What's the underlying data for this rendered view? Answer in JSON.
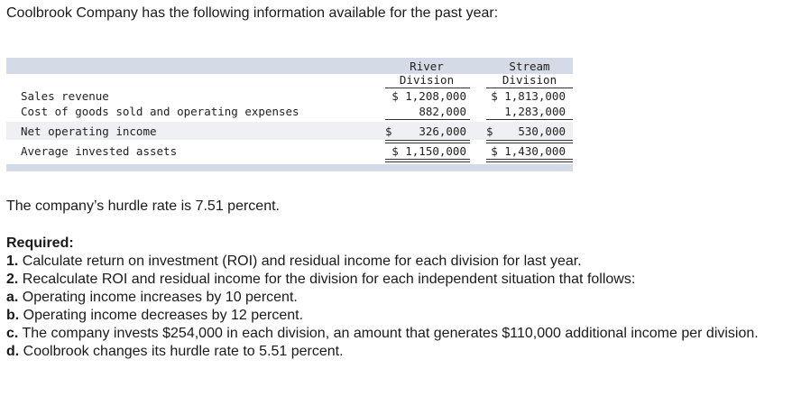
{
  "intro": "Coolbrook Company has the following information available for the past year:",
  "table": {
    "col_headers": [
      {
        "line1": "River",
        "line2": "Division"
      },
      {
        "line1": "Stream",
        "line2": "Division"
      }
    ],
    "rows": [
      {
        "label": "Sales revenue",
        "river": "$ 1,208,000",
        "stream": "$ 1,813,000"
      },
      {
        "label": "Cost of goods sold and operating expenses",
        "river": "882,000",
        "stream": "1,283,000"
      },
      {
        "label": "Net operating income",
        "river_sign": "$",
        "river": "326,000",
        "stream_sign": "$",
        "stream": "530,000"
      },
      {
        "label": "Average invested assets",
        "river": "$ 1,150,000",
        "stream": "$ 1,430,000"
      }
    ]
  },
  "hurdle": "The company’s hurdle rate is 7.51 percent.",
  "required": {
    "heading": "Required:",
    "items": [
      {
        "num": "1.",
        "text": " Calculate return on investment (ROI) and residual income for each division for last year."
      },
      {
        "num": "2.",
        "text": " Recalculate ROI and residual income for the division for each independent situation that follows:"
      },
      {
        "num": "a.",
        "text": " Operating income increases by 10 percent."
      },
      {
        "num": "b.",
        "text": " Operating income decreases by 12 percent."
      },
      {
        "num": "c.",
        "text": " The company invests $254,000 in each division, an amount that generates $110,000 additional income per division."
      },
      {
        "num": "d.",
        "text": " Coolbrook changes its hurdle rate to 5.51 percent."
      }
    ]
  }
}
